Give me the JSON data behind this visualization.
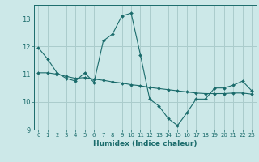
{
  "xlabel": "Humidex (Indice chaleur)",
  "ylabel": "",
  "background_color": "#cce8e8",
  "grid_color": "#aacccc",
  "line_color": "#1a6b6b",
  "xlim": [
    -0.5,
    23.5
  ],
  "ylim": [
    9.0,
    13.5
  ],
  "yticks": [
    9,
    10,
    11,
    12,
    13
  ],
  "xticks": [
    0,
    1,
    2,
    3,
    4,
    5,
    6,
    7,
    8,
    9,
    10,
    11,
    12,
    13,
    14,
    15,
    16,
    17,
    18,
    19,
    20,
    21,
    22,
    23
  ],
  "line1_x": [
    0,
    1,
    2,
    3,
    4,
    5,
    6,
    7,
    8,
    9,
    10,
    11,
    12,
    13,
    14,
    15,
    16,
    17,
    18,
    19,
    20,
    21,
    22,
    23
  ],
  "line1_y": [
    11.95,
    11.55,
    11.05,
    10.85,
    10.75,
    11.05,
    10.7,
    12.2,
    12.45,
    13.1,
    13.2,
    11.7,
    10.1,
    9.85,
    9.4,
    9.15,
    9.6,
    10.1,
    10.1,
    10.5,
    10.5,
    10.6,
    10.75,
    10.4
  ],
  "line2_x": [
    0,
    1,
    2,
    3,
    4,
    5,
    6,
    7,
    8,
    9,
    10,
    11,
    12,
    13,
    14,
    15,
    16,
    17,
    18,
    19,
    20,
    21,
    22,
    23
  ],
  "line2_y": [
    11.05,
    11.05,
    11.0,
    10.92,
    10.85,
    10.88,
    10.82,
    10.78,
    10.72,
    10.68,
    10.62,
    10.58,
    10.52,
    10.48,
    10.44,
    10.4,
    10.36,
    10.32,
    10.3,
    10.3,
    10.3,
    10.32,
    10.32,
    10.28
  ]
}
